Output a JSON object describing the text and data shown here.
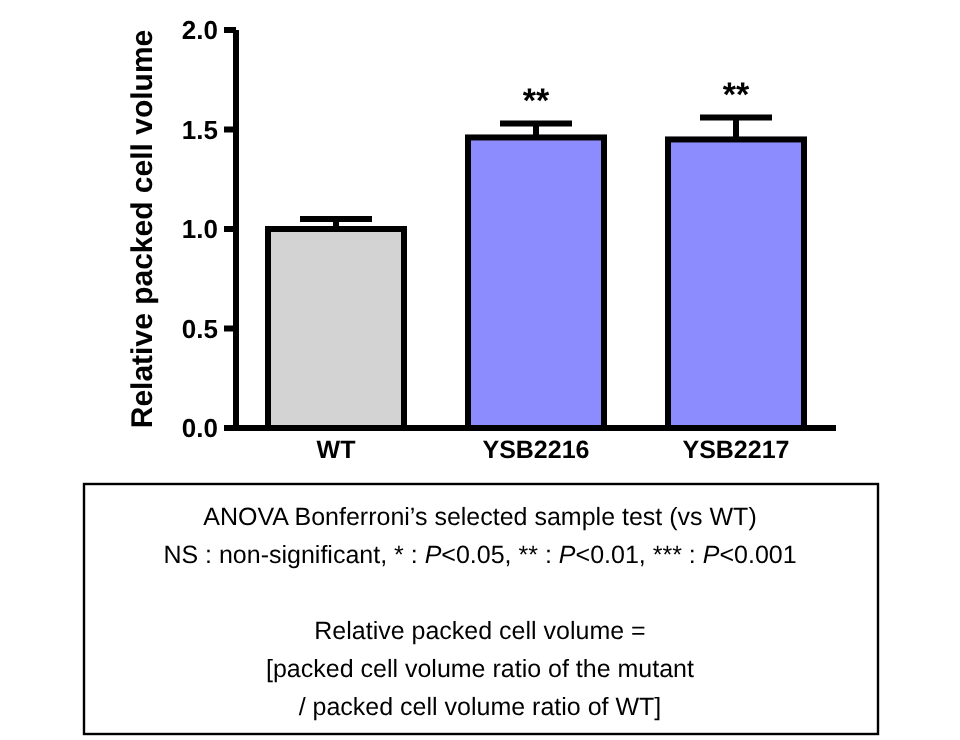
{
  "chart_data": {
    "type": "bar",
    "ylabel": "Relative packed cell volume",
    "categories": [
      "WT",
      "YSB2216",
      "YSB2217"
    ],
    "values": [
      1.0,
      1.46,
      1.45
    ],
    "colors": [
      "#d3d3d3",
      "#8c8cff",
      "#8c8cff"
    ],
    "errors": [
      0.05,
      0.07,
      0.11
    ],
    "ylim": [
      0,
      2
    ],
    "yticks": [
      {
        "value": 0,
        "label": "0.0"
      },
      {
        "value": 0.5,
        "label": "0.5"
      },
      {
        "value": 1,
        "label": "1.0"
      },
      {
        "value": 1.5,
        "label": "1.5"
      },
      {
        "value": 2,
        "label": "2.0"
      }
    ],
    "annotations": [
      {
        "text": "**",
        "x": "YSB2216",
        "y": 1.53
      },
      {
        "text": "**",
        "x": "YSB2217",
        "y": 1.56
      },
      "ANOVA Bonferroni’s selected sample test (vs WT)\nNS : non-significant, * : P<0.05, ** : P<0.01, *** : P<0.001",
      "Relative packed cell volume =\n[packed cell volume ratio of the mutant\n/ packed cell volume ratio of WT]"
    ]
  }
}
